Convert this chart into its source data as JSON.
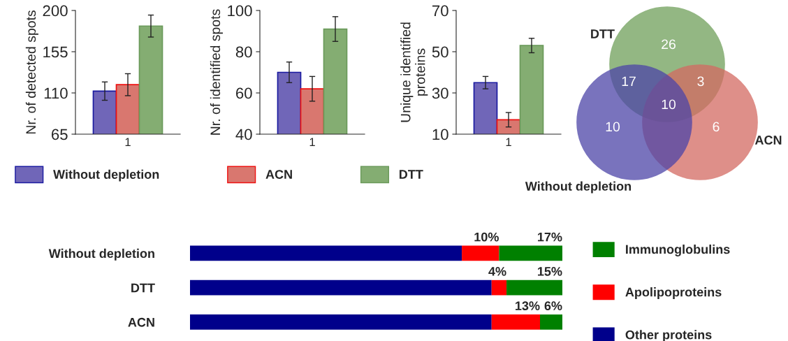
{
  "chart_data": [
    {
      "type": "bar",
      "ylabel": "Nr. of detected spots",
      "categories": [
        "1"
      ],
      "ylim": [
        65,
        200
      ],
      "yticks": [
        65,
        110,
        155,
        200
      ],
      "legend": "bottom",
      "series": [
        {
          "name": "Without depletion",
          "color": "#7066b8",
          "values": [
            112
          ],
          "errors": [
            10
          ]
        },
        {
          "name": "ACN",
          "color": "#d9776f",
          "values": [
            119
          ],
          "errors": [
            12
          ]
        },
        {
          "name": "DTT",
          "color": "#84ad72",
          "values": [
            183
          ],
          "errors": [
            12
          ]
        }
      ]
    },
    {
      "type": "bar",
      "ylabel": "Nr. of identified spots",
      "categories": [
        "1"
      ],
      "ylim": [
        40,
        100
      ],
      "yticks": [
        40,
        60,
        80,
        100
      ],
      "series": [
        {
          "color": "#7066b8",
          "values": [
            70
          ],
          "errors": [
            5
          ]
        },
        {
          "color": "#d9776f",
          "values": [
            62
          ],
          "errors": [
            6
          ]
        },
        {
          "color": "#84ad72",
          "values": [
            91
          ],
          "errors": [
            6
          ]
        }
      ]
    },
    {
      "type": "bar",
      "ylabel": "Unique identified\nproteins",
      "categories": [
        "1"
      ],
      "ylim": [
        10,
        70
      ],
      "yticks": [
        10,
        30,
        50,
        70
      ],
      "series": [
        {
          "color": "#7066b8",
          "values": [
            35
          ],
          "errors": [
            3
          ]
        },
        {
          "color": "#d9776f",
          "values": [
            17
          ],
          "errors": [
            3.5
          ]
        },
        {
          "color": "#84ad72",
          "values": [
            53
          ],
          "errors": [
            3.5
          ]
        }
      ]
    },
    {
      "type": "other",
      "categories": [
        "DTT",
        "ACN",
        "Without depletion"
      ],
      "colors": [
        "#6f9f5a",
        "#d46a62",
        "#4d45a8"
      ],
      "annotations": [
        "26",
        "17",
        "3",
        "10",
        "10",
        "6"
      ]
    },
    {
      "type": "bar",
      "orientation": "horizontal",
      "stacked": true,
      "categories": [
        "Without depletion",
        "DTT",
        "ACN"
      ],
      "legend": "right",
      "series": [
        {
          "name": "Other proteins",
          "color": "#00008b",
          "values": [
            73,
            81,
            81
          ],
          "value_labels": [
            null,
            null,
            null
          ]
        },
        {
          "name": "Apolipoproteins",
          "color": "#ff0000",
          "values": [
            10,
            4,
            13
          ],
          "value_labels": [
            "10%",
            "4%",
            "13%"
          ]
        },
        {
          "name": "Immunoglobulins",
          "color": "#008000",
          "values": [
            17,
            15,
            6
          ],
          "value_labels": [
            "17%",
            "15%",
            "6%"
          ]
        }
      ]
    }
  ]
}
